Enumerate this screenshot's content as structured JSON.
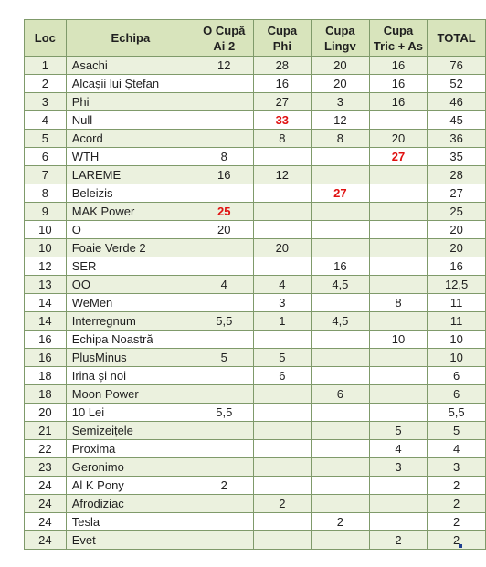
{
  "headers": {
    "loc": "Loc",
    "echipa": "Echipa",
    "c1_line1": "O Cupă",
    "c1_line2": "Ai 2",
    "c2_line1": "Cupa",
    "c2_line2": "Phi",
    "c3_line1": "Cupa",
    "c3_line2": "Lingv",
    "c4_line1": "Cupa",
    "c4_line2": "Tric + As",
    "total": "TOTAL"
  },
  "highlight_color": "#e01010",
  "rows": [
    {
      "loc": "1",
      "team": "Asachi",
      "c1": "12",
      "c2": "28",
      "c3": "20",
      "c4": "16",
      "total": "76"
    },
    {
      "loc": "2",
      "team": "Alcașii lui Ștefan",
      "c1": "",
      "c2": "16",
      "c3": "20",
      "c4": "16",
      "total": "52"
    },
    {
      "loc": "3",
      "team": "Phi",
      "c1": "",
      "c2": "27",
      "c3": "3",
      "c4": "16",
      "total": "46"
    },
    {
      "loc": "4",
      "team": "Null",
      "c1": "",
      "c2": "33",
      "c3": "12",
      "c4": "",
      "total": "45",
      "hl": "c2"
    },
    {
      "loc": "5",
      "team": "Acord",
      "c1": "",
      "c2": "8",
      "c3": "8",
      "c4": "20",
      "total": "36"
    },
    {
      "loc": "6",
      "team": "WTH",
      "c1": "8",
      "c2": "",
      "c3": "",
      "c4": "27",
      "total": "35",
      "hl": "c4"
    },
    {
      "loc": "7",
      "team": "LAREME",
      "c1": "16",
      "c2": "12",
      "c3": "",
      "c4": "",
      "total": "28"
    },
    {
      "loc": "8",
      "team": "Beleizis",
      "c1": "",
      "c2": "",
      "c3": "27",
      "c4": "",
      "total": "27",
      "hl": "c3"
    },
    {
      "loc": "9",
      "team": "MAK Power",
      "c1": "25",
      "c2": "",
      "c3": "",
      "c4": "",
      "total": "25",
      "hl": "c1"
    },
    {
      "loc": "10",
      "team": "O",
      "c1": "20",
      "c2": "",
      "c3": "",
      "c4": "",
      "total": "20"
    },
    {
      "loc": "10",
      "team": "Foaie Verde 2",
      "c1": "",
      "c2": "20",
      "c3": "",
      "c4": "",
      "total": "20"
    },
    {
      "loc": "12",
      "team": "SER",
      "c1": "",
      "c2": "",
      "c3": "16",
      "c4": "",
      "total": "16"
    },
    {
      "loc": "13",
      "team": "OO",
      "c1": "4",
      "c2": "4",
      "c3": "4,5",
      "c4": "",
      "total": "12,5"
    },
    {
      "loc": "14",
      "team": "WeMen",
      "c1": "",
      "c2": "3",
      "c3": "",
      "c4": "8",
      "total": "11"
    },
    {
      "loc": "14",
      "team": "Interregnum",
      "c1": "5,5",
      "c2": "1",
      "c3": "4,5",
      "c4": "",
      "total": "11"
    },
    {
      "loc": "16",
      "team": "Echipa Noastră",
      "c1": "",
      "c2": "",
      "c3": "",
      "c4": "10",
      "total": "10"
    },
    {
      "loc": "16",
      "team": "PlusMinus",
      "c1": "5",
      "c2": "5",
      "c3": "",
      "c4": "",
      "total": "10"
    },
    {
      "loc": "18",
      "team": "Irina și noi",
      "c1": "",
      "c2": "6",
      "c3": "",
      "c4": "",
      "total": "6"
    },
    {
      "loc": "18",
      "team": "Moon Power",
      "c1": "",
      "c2": "",
      "c3": "6",
      "c4": "",
      "total": "6"
    },
    {
      "loc": "20",
      "team": "10 Lei",
      "c1": "5,5",
      "c2": "",
      "c3": "",
      "c4": "",
      "total": "5,5"
    },
    {
      "loc": "21",
      "team": "Semizeițele",
      "c1": "",
      "c2": "",
      "c3": "",
      "c4": "5",
      "total": "5"
    },
    {
      "loc": "22",
      "team": "Proxima",
      "c1": "",
      "c2": "",
      "c3": "",
      "c4": "4",
      "total": "4"
    },
    {
      "loc": "23",
      "team": "Geronimo",
      "c1": "",
      "c2": "",
      "c3": "",
      "c4": "3",
      "total": "3"
    },
    {
      "loc": "24",
      "team": "Al K Pony",
      "c1": "2",
      "c2": "",
      "c3": "",
      "c4": "",
      "total": "2"
    },
    {
      "loc": "24",
      "team": "Afrodiziac",
      "c1": "",
      "c2": "2",
      "c3": "",
      "c4": "",
      "total": "2"
    },
    {
      "loc": "24",
      "team": "Tesla",
      "c1": "",
      "c2": "",
      "c3": "2",
      "c4": "",
      "total": "2"
    },
    {
      "loc": "24",
      "team": "Evet",
      "c1": "",
      "c2": "",
      "c3": "",
      "c4": "2",
      "total": "2"
    }
  ]
}
